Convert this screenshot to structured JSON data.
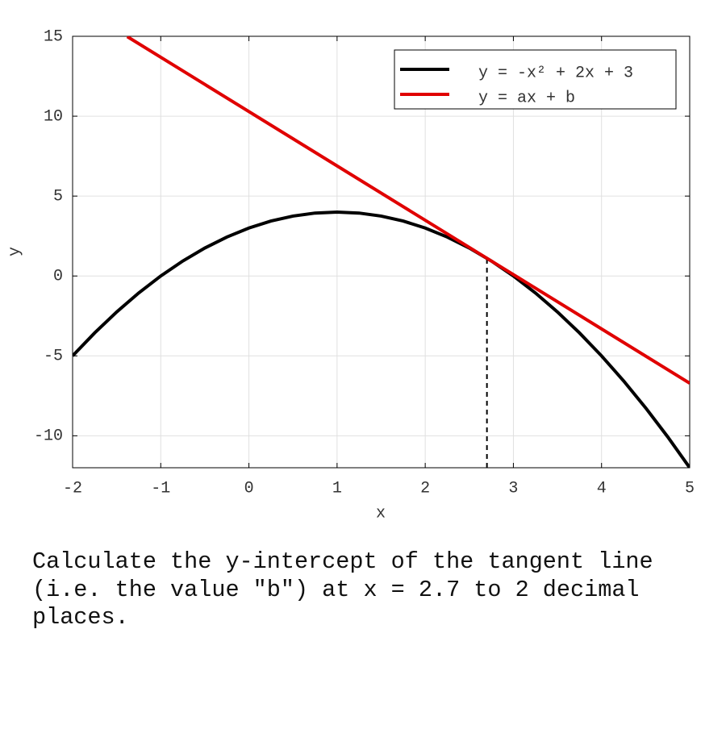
{
  "chart_data": {
    "type": "line",
    "x_label": "x",
    "y_label": "y",
    "xlim": [
      -2,
      5
    ],
    "ylim": [
      -12,
      15
    ],
    "xticks": [
      -2,
      -1,
      0,
      1,
      2,
      3,
      4,
      5
    ],
    "yticks": [
      -10,
      -5,
      0,
      5,
      10,
      15
    ],
    "grid": true,
    "legend": "upper right",
    "series": [
      {
        "name": "y = -x² + 2x + 3",
        "color": "#000000",
        "x": [
          -2,
          -1.75,
          -1.5,
          -1.25,
          -1,
          -0.75,
          -0.5,
          -0.25,
          0,
          0.25,
          0.5,
          0.75,
          1,
          1.25,
          1.5,
          1.75,
          2,
          2.25,
          2.5,
          2.75,
          3,
          3.25,
          3.5,
          3.75,
          4,
          4.25,
          4.5,
          4.75,
          5
        ],
        "values": [
          -5,
          -3.5625,
          -2.25,
          -1.0625,
          0,
          0.9375,
          1.75,
          2.4375,
          3,
          3.4375,
          3.75,
          3.9375,
          4,
          3.9375,
          3.75,
          3.4375,
          3,
          2.4375,
          1.75,
          0.9375,
          0,
          -1.0625,
          -2.25,
          -3.5625,
          -5,
          -6.5625,
          -8.25,
          -10.0625,
          -12
        ]
      },
      {
        "name": "y = ax + b",
        "color": "#e00000",
        "x": [
          -1.38,
          5
        ],
        "values": [
          14.98,
          -6.71
        ]
      }
    ],
    "vline": {
      "x": 2.7,
      "y": 1.11
    }
  },
  "question": "Calculate the y-intercept of the tangent line (i.e. the value \"b\") at x = 2.7 to 2 decimal places."
}
